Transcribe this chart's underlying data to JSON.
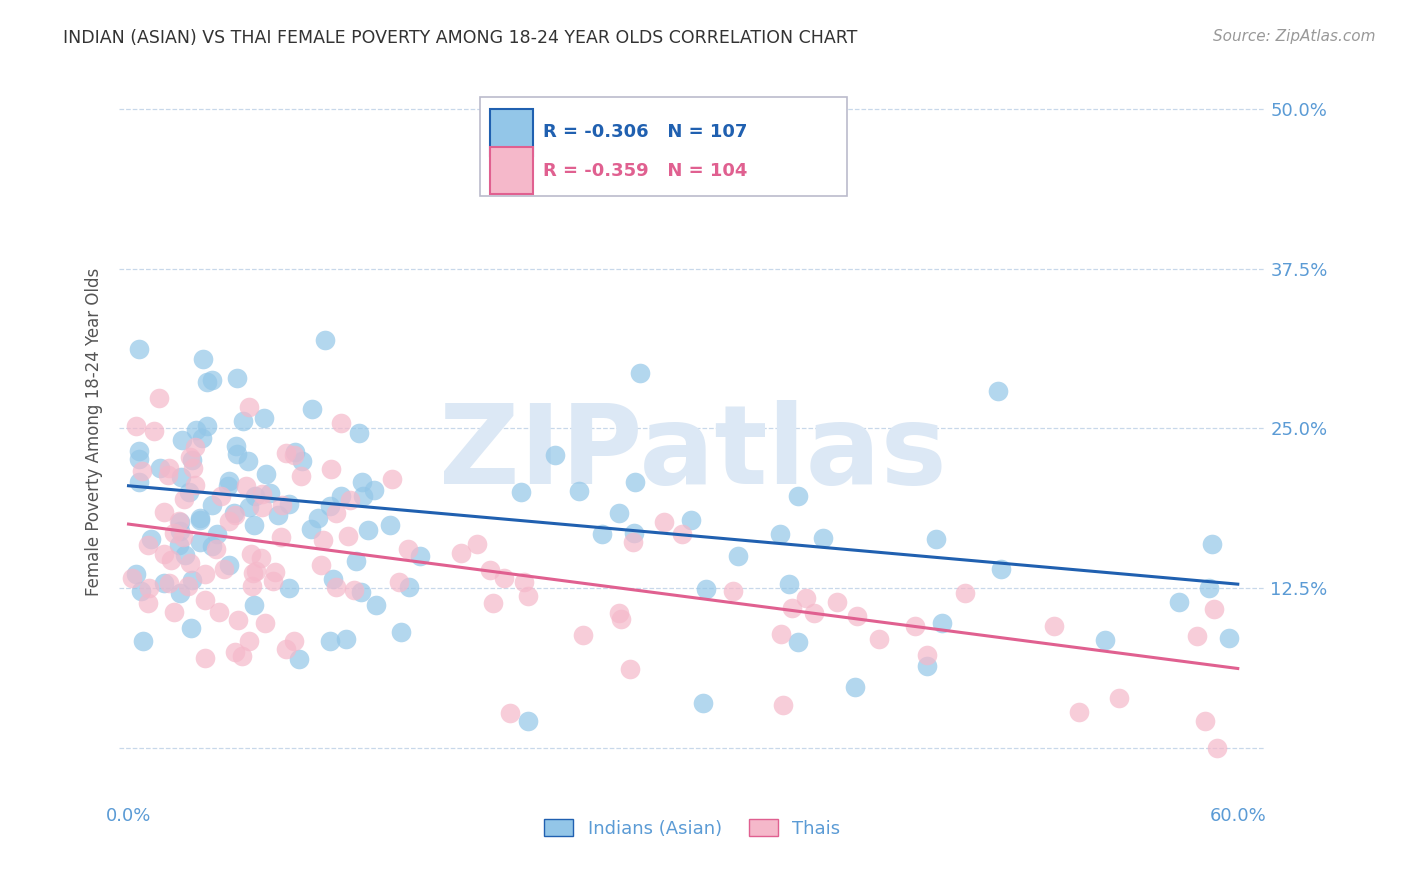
{
  "title": "INDIAN (ASIAN) VS THAI FEMALE POVERTY AMONG 18-24 YEAR OLDS CORRELATION CHART",
  "source": "Source: ZipAtlas.com",
  "ylabel": "Female Poverty Among 18-24 Year Olds",
  "xlim": [
    -0.005,
    0.615
  ],
  "ylim": [
    -0.04,
    0.535
  ],
  "legend1_label": "Indians (Asian)",
  "legend2_label": "Thais",
  "r1": -0.306,
  "n1": 107,
  "r2": -0.359,
  "n2": 104,
  "color_indian": "#93c6e8",
  "color_thai": "#f5b8ca",
  "color_indian_line": "#2060b0",
  "color_thai_line": "#e06090",
  "watermark": "ZIPatlas",
  "watermark_color": "#dce8f5",
  "ind_line_x0": 0.0,
  "ind_line_y0": 0.205,
  "ind_line_x1": 0.6,
  "ind_line_y1": 0.128,
  "thai_line_x0": 0.0,
  "thai_line_y0": 0.175,
  "thai_line_x1": 0.6,
  "thai_line_y1": 0.062
}
